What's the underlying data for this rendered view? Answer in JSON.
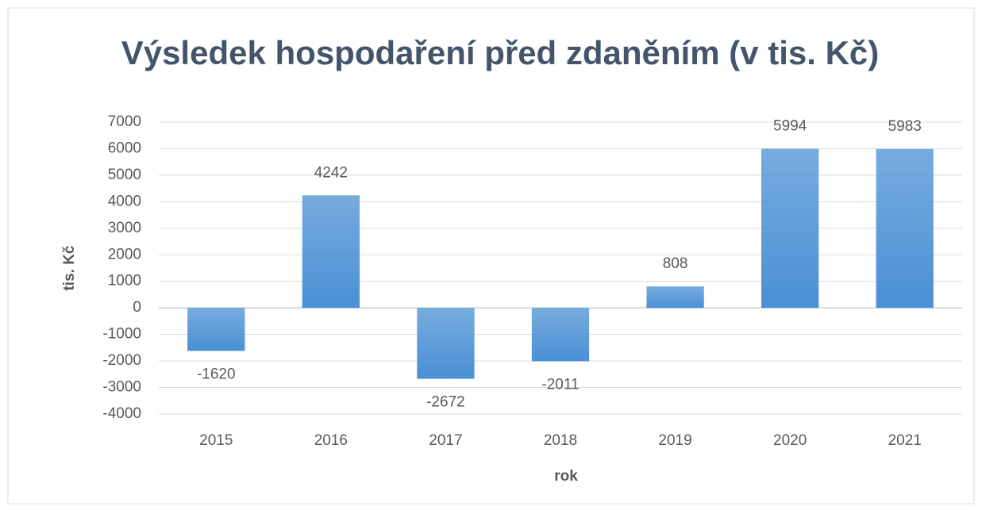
{
  "chart_data": {
    "type": "bar",
    "title": "Výsledek hospodaření před zdaněním (v tis. Kč)",
    "x_label": "rok",
    "y_label": "tis. Kč",
    "categories": [
      "2015",
      "2016",
      "2017",
      "2018",
      "2019",
      "2020",
      "2021"
    ],
    "values": [
      -1620,
      4242,
      -2672,
      -2011,
      808,
      5994,
      5983
    ],
    "color": "#4a90d4",
    "ylim": [
      -4000,
      7000
    ],
    "yticks": [
      -4000,
      -3000,
      -2000,
      -1000,
      0,
      1000,
      2000,
      3000,
      4000,
      5000,
      6000,
      7000
    ],
    "grid": true
  }
}
